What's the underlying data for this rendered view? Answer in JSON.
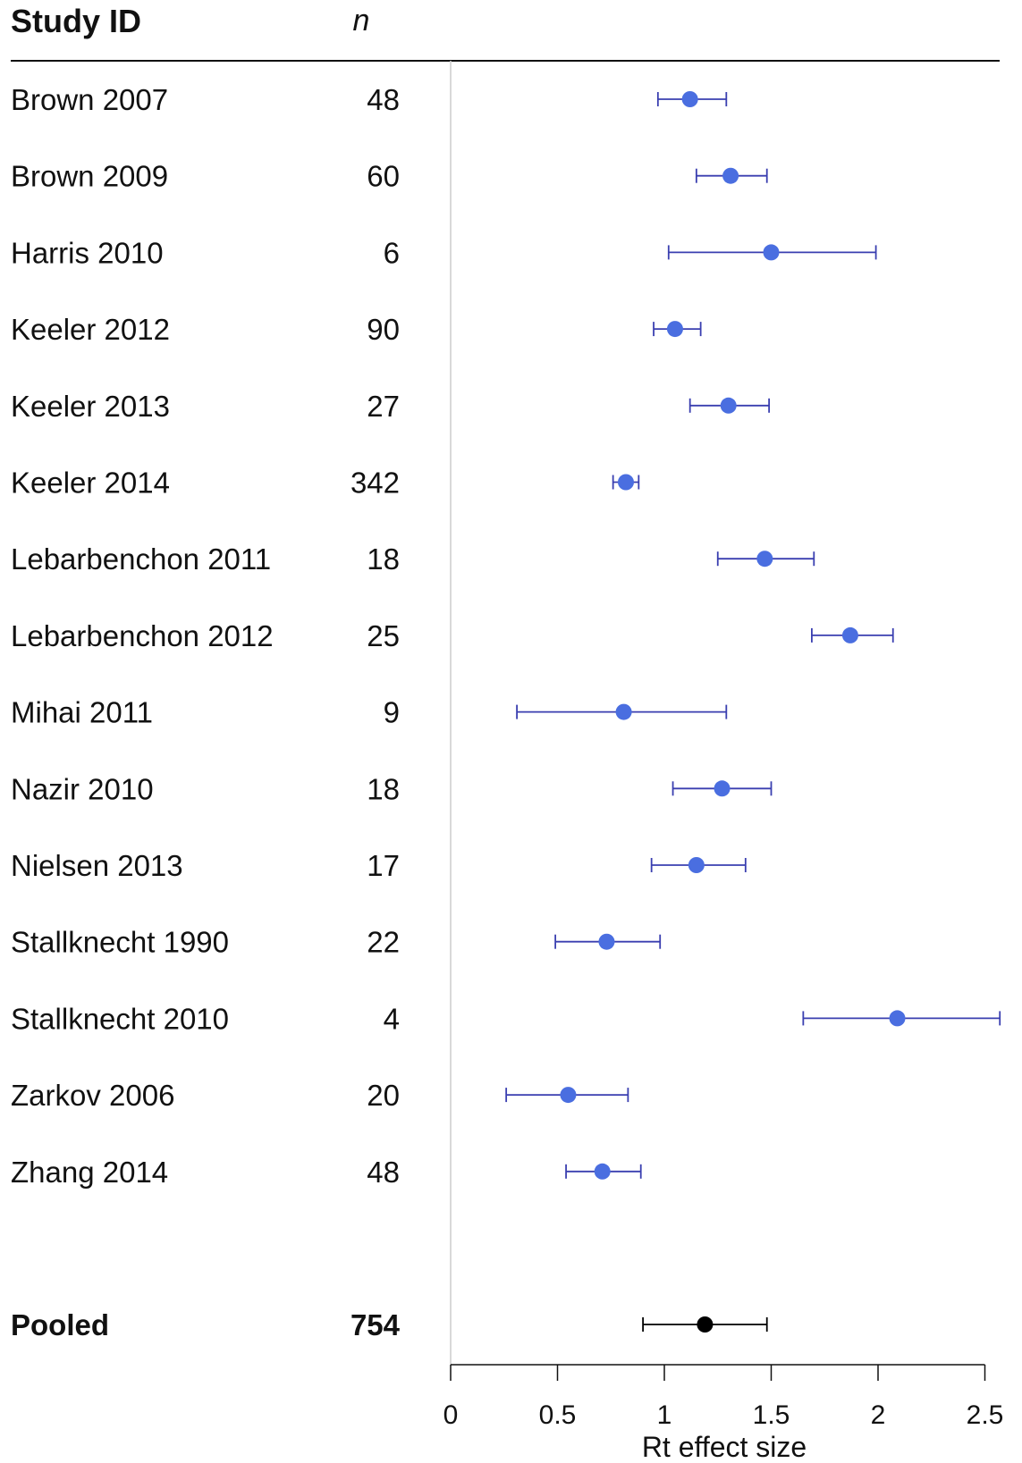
{
  "chart_data": {
    "type": "forest",
    "headers": {
      "study": "Study ID",
      "n": "n"
    },
    "xlabel": "Rt effect size",
    "xlim": [
      0,
      2.5
    ],
    "xticks": [
      0,
      0.5,
      1,
      1.5,
      2,
      2.5
    ],
    "xtick_labels": [
      "0",
      "0.5",
      "1",
      "1.5",
      "2",
      "2.5"
    ],
    "study_color": "#4a6ee0",
    "ci_color": "#3a3fb0",
    "pooled_color": "#000000",
    "studies": [
      {
        "id": "Brown 2007",
        "n": "48",
        "estimate": 1.12,
        "lower": 0.97,
        "upper": 1.29
      },
      {
        "id": "Brown 2009",
        "n": "60",
        "estimate": 1.31,
        "lower": 1.15,
        "upper": 1.48
      },
      {
        "id": "Harris 2010",
        "n": "6",
        "estimate": 1.5,
        "lower": 1.02,
        "upper": 1.99
      },
      {
        "id": "Keeler 2012",
        "n": "90",
        "estimate": 1.05,
        "lower": 0.95,
        "upper": 1.17
      },
      {
        "id": "Keeler 2013",
        "n": "27",
        "estimate": 1.3,
        "lower": 1.12,
        "upper": 1.49
      },
      {
        "id": "Keeler 2014",
        "n": "342",
        "estimate": 0.82,
        "lower": 0.76,
        "upper": 0.88
      },
      {
        "id": "Lebarbenchon 2011",
        "n": "18",
        "estimate": 1.47,
        "lower": 1.25,
        "upper": 1.7
      },
      {
        "id": "Lebarbenchon 2012",
        "n": "25",
        "estimate": 1.87,
        "lower": 1.69,
        "upper": 2.07
      },
      {
        "id": "Mihai 2011",
        "n": "9",
        "estimate": 0.81,
        "lower": 0.31,
        "upper": 1.29
      },
      {
        "id": "Nazir 2010",
        "n": "18",
        "estimate": 1.27,
        "lower": 1.04,
        "upper": 1.5
      },
      {
        "id": "Nielsen 2013",
        "n": "17",
        "estimate": 1.15,
        "lower": 0.94,
        "upper": 1.38
      },
      {
        "id": "Stallknecht 1990",
        "n": "22",
        "estimate": 0.73,
        "lower": 0.49,
        "upper": 0.98
      },
      {
        "id": "Stallknecht 2010",
        "n": "4",
        "estimate": 2.09,
        "lower": 1.65,
        "upper": 2.57
      },
      {
        "id": "Zarkov 2006",
        "n": "20",
        "estimate": 0.55,
        "lower": 0.26,
        "upper": 0.83
      },
      {
        "id": "Zhang 2014",
        "n": "48",
        "estimate": 0.71,
        "lower": 0.54,
        "upper": 0.89
      }
    ],
    "pooled": {
      "id": "Pooled",
      "n": "754",
      "estimate": 1.19,
      "lower": 0.9,
      "upper": 1.48
    }
  }
}
